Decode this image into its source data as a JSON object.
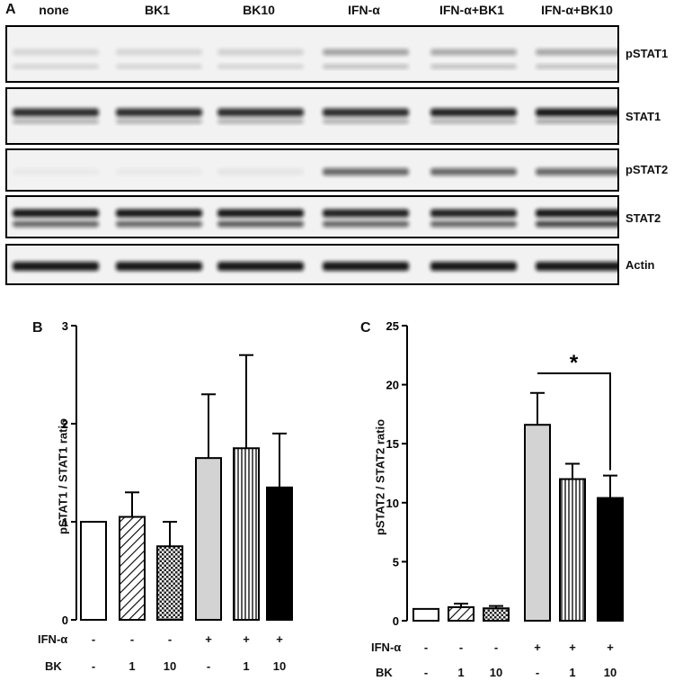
{
  "panel_a": {
    "letter": "A",
    "lanes": [
      "none",
      "BK1",
      "BK10",
      "IFN-α",
      "IFN-α+BK1",
      "IFN-α+BK10"
    ],
    "blots": [
      "pSTAT1",
      "STAT1",
      "pSTAT2",
      "STAT2",
      "Actin"
    ]
  },
  "chart_data": [
    {
      "panel": "B",
      "type": "bar",
      "ylabel": "pSTAT1 / STAT1 ratio",
      "ylim": [
        0,
        3
      ],
      "yticks": [
        "0",
        "1",
        "2",
        "3"
      ],
      "values": [
        1.0,
        1.05,
        0.75,
        1.65,
        1.75,
        1.35
      ],
      "errors": [
        0,
        0.25,
        0.25,
        0.65,
        0.95,
        0.55
      ],
      "patterns": [
        "white",
        "diagonal",
        "checker",
        "gray",
        "vertical",
        "black"
      ],
      "rows": [
        {
          "label": "IFN-α",
          "values": [
            "-",
            "-",
            "-",
            "+",
            "+",
            "+"
          ]
        },
        {
          "label": "BK",
          "values": [
            "-",
            "1",
            "10",
            "-",
            "1",
            "10"
          ]
        }
      ]
    },
    {
      "panel": "C",
      "type": "bar",
      "ylabel": "pSTAT2 / STAT2 ratio",
      "ylim": [
        0,
        25
      ],
      "yticks": [
        "0",
        "5",
        "10",
        "15",
        "20",
        "25"
      ],
      "values": [
        1.0,
        1.15,
        1.05,
        16.6,
        12.0,
        10.4
      ],
      "errors": [
        0,
        0.3,
        0.2,
        2.7,
        1.3,
        1.9
      ],
      "patterns": [
        "white",
        "diagonal",
        "checker",
        "gray",
        "vertical",
        "black"
      ],
      "significance": {
        "from": 3,
        "to": 5,
        "label": "*"
      },
      "rows": [
        {
          "label": "IFN-α",
          "values": [
            "-",
            "-",
            "-",
            "+",
            "+",
            "+"
          ]
        },
        {
          "label": "BK",
          "values": [
            "-",
            "1",
            "10",
            "-",
            "1",
            "10"
          ]
        }
      ]
    }
  ]
}
